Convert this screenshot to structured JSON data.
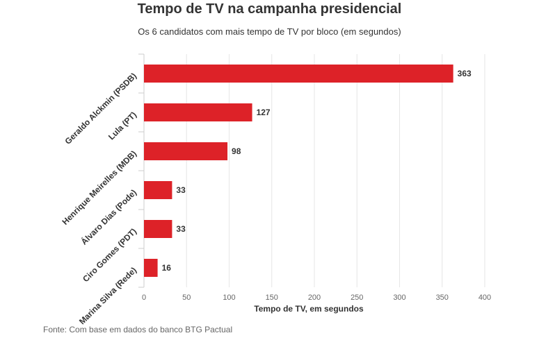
{
  "chart_data": {
    "type": "bar",
    "orientation": "horizontal",
    "title": "Tempo de TV na campanha presidencial",
    "subtitle": "Os 6 candidatos com mais tempo de TV por bloco (em segundos)",
    "categories": [
      "Geraldo Alckmin (PSDB)",
      "Lula (PT)",
      "Henrique Meirelles (MDB)",
      "Álvaro Dias (Pode)",
      "Ciro Gomes (PDT)",
      "Marina Silva (Rede)"
    ],
    "values": [
      363,
      127,
      98,
      33,
      33,
      16
    ],
    "value_labels": [
      "363",
      "127",
      "98",
      "33",
      "33",
      "16"
    ],
    "xlabel": "Tempo de TV, em segundos",
    "ylabel": "",
    "xlim": [
      0,
      400
    ],
    "x_ticks": [
      0,
      50,
      100,
      150,
      200,
      250,
      300,
      350,
      400
    ],
    "x_tick_labels": [
      "0",
      "50",
      "100",
      "150",
      "200",
      "250",
      "300",
      "350",
      "400"
    ],
    "grid": true,
    "bar_color": "#dd2228",
    "source": "Fonte: Com base em dados do banco BTG Pactual"
  }
}
